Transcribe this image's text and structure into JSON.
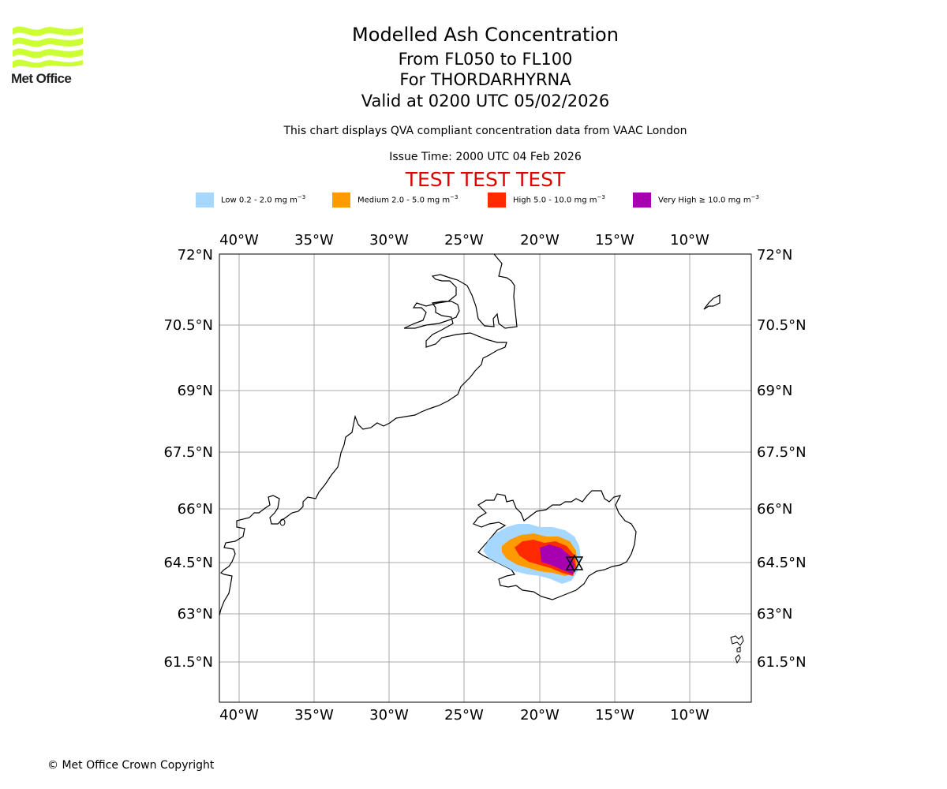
{
  "logo": {
    "text": "Met Office",
    "color": "#ccff33"
  },
  "header": {
    "title": "Modelled Ash Concentration",
    "levels": "From FL050 to FL100",
    "volcano": "For THORDARHYRNA",
    "valid": "Valid at 0200 UTC 05/02/2026",
    "note": "This chart displays QVA compliant concentration data from VAAC London",
    "issue": "Issue Time: 2000 UTC 04 Feb 2026",
    "test_banner": "TEST TEST TEST"
  },
  "legend": [
    {
      "label": "Low 0.2 - 2.0 mg m",
      "unit_exp": "−3",
      "color": "#a6d8ff"
    },
    {
      "label": "Medium 2.0 - 5.0 mg m",
      "unit_exp": "−3",
      "color": "#ff9a00"
    },
    {
      "label": "High 5.0 - 10.0 mg m",
      "unit_exp": "−3",
      "color": "#ff2a00"
    },
    {
      "label": "Very High  ≥  10.0 mg m",
      "unit_exp": "−3",
      "color": "#a600b0"
    }
  ],
  "map": {
    "lon_ticks": [
      "40°W",
      "35°W",
      "30°W",
      "25°W",
      "20°W",
      "15°W",
      "10°W"
    ],
    "lat_ticks": [
      "72°N",
      "70.5°N",
      "69°N",
      "67.5°N",
      "66°N",
      "64.5°N",
      "63°N",
      "61.5°N"
    ],
    "gridline_color": "#aaaaaa",
    "volcano_symbol": "volcano-triangle-icon"
  },
  "footer": {
    "copyright": "© Met Office Crown Copyright"
  }
}
